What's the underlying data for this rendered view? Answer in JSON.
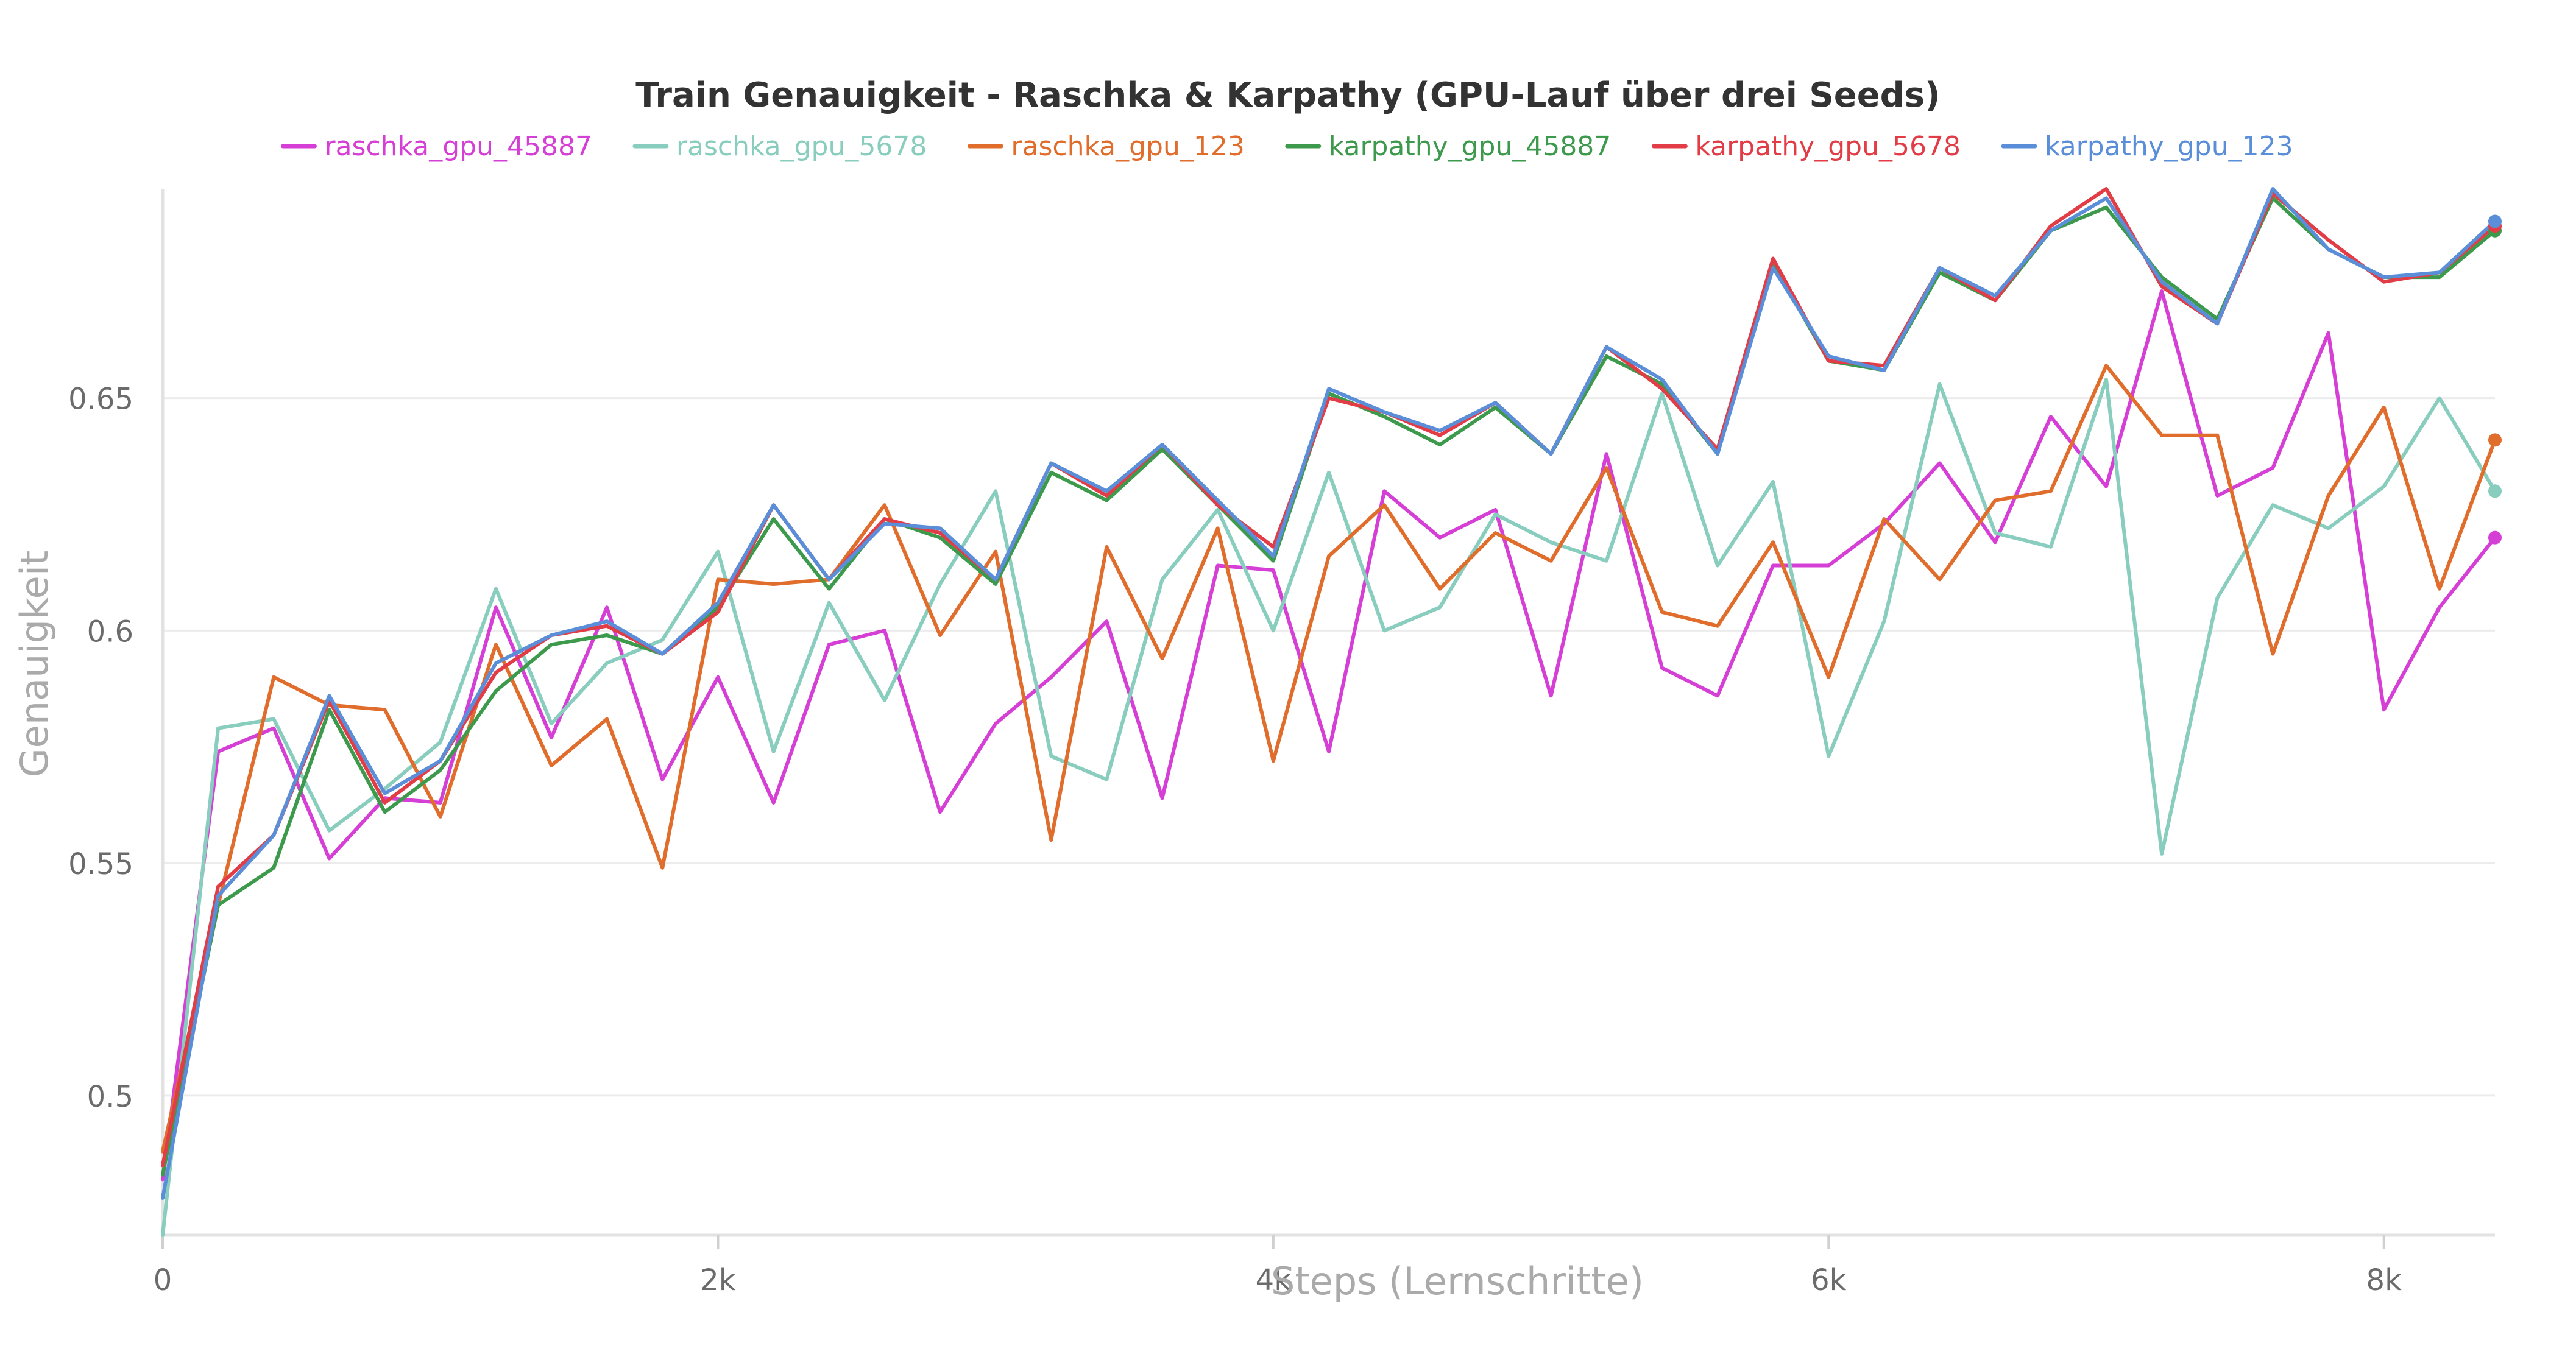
{
  "chart_data": {
    "type": "line",
    "title": "Train Genauigkeit - Raschka & Karpathy (GPU-Lauf über drei Seeds)",
    "xlabel": "Steps (Lernschritte)",
    "ylabel": "Genauigkeit",
    "xlim": [
      0,
      8400
    ],
    "ylim": [
      0.47,
      0.695
    ],
    "xticks": [
      0,
      2000,
      4000,
      6000,
      8000
    ],
    "xtick_labels": [
      "0",
      "2k",
      "4k",
      "6k",
      "8k"
    ],
    "yticks": [
      0.5,
      0.55,
      0.6,
      0.65
    ],
    "ytick_labels": [
      "0.5",
      "0.55",
      "0.6",
      "0.65"
    ],
    "grid": "horizontal",
    "legend_position": "top",
    "x": [
      0,
      200,
      400,
      600,
      800,
      1000,
      1200,
      1400,
      1600,
      1800,
      2000,
      2200,
      2400,
      2600,
      2800,
      3000,
      3200,
      3400,
      3600,
      3800,
      4000,
      4200,
      4400,
      4600,
      4800,
      5000,
      5200,
      5400,
      5600,
      5800,
      6000,
      6200,
      6400,
      6600,
      6800,
      7000,
      7200,
      7400,
      7600,
      7800,
      8000,
      8200,
      8400
    ],
    "series": [
      {
        "name": "raschka_gpu_45887",
        "color": "#d63fd6",
        "values": [
          0.482,
          0.574,
          0.579,
          0.551,
          0.564,
          0.563,
          0.605,
          0.577,
          0.605,
          0.568,
          0.59,
          0.563,
          0.597,
          0.6,
          0.561,
          0.58,
          0.59,
          0.602,
          0.564,
          0.614,
          0.613,
          0.574,
          0.63,
          0.62,
          0.626,
          0.586,
          0.638,
          0.592,
          0.586,
          0.614,
          0.614,
          0.623,
          0.636,
          0.619,
          0.646,
          0.631,
          0.673,
          0.629,
          0.635,
          0.664,
          0.583,
          0.605,
          0.62
        ]
      },
      {
        "name": "raschka_gpu_5678",
        "color": "#88cdbd",
        "values": [
          0.47,
          0.579,
          0.581,
          0.557,
          0.566,
          0.576,
          0.609,
          0.58,
          0.593,
          0.598,
          0.617,
          0.574,
          0.606,
          0.585,
          0.61,
          0.63,
          0.573,
          0.568,
          0.611,
          0.626,
          0.6,
          0.634,
          0.6,
          0.605,
          0.625,
          0.619,
          0.615,
          0.651,
          0.614,
          0.632,
          0.573,
          0.602,
          0.653,
          0.621,
          0.618,
          0.654,
          0.552,
          0.607,
          0.627,
          0.622,
          0.631,
          0.65,
          0.63
        ]
      },
      {
        "name": "raschka_gpu_123",
        "color": "#e06d2b",
        "values": [
          0.488,
          0.541,
          0.59,
          0.584,
          0.583,
          0.56,
          0.597,
          0.571,
          0.581,
          0.549,
          0.611,
          0.61,
          0.611,
          0.627,
          0.599,
          0.617,
          0.555,
          0.618,
          0.594,
          0.622,
          0.572,
          0.616,
          0.627,
          0.609,
          0.621,
          0.615,
          0.635,
          0.604,
          0.601,
          0.619,
          0.59,
          0.624,
          0.611,
          0.628,
          0.63,
          0.657,
          0.642,
          0.642,
          0.595,
          0.629,
          0.648,
          0.609,
          0.641
        ]
      },
      {
        "name": "karpathy_gpu_45887",
        "color": "#3d9a4c",
        "values": [
          0.483,
          0.541,
          0.549,
          0.583,
          0.561,
          0.57,
          0.587,
          0.597,
          0.599,
          0.595,
          0.605,
          0.624,
          0.609,
          0.624,
          0.62,
          0.61,
          0.634,
          0.628,
          0.639,
          0.627,
          0.615,
          0.651,
          0.646,
          0.64,
          0.648,
          0.638,
          0.659,
          0.653,
          0.638,
          0.679,
          0.658,
          0.656,
          0.677,
          0.671,
          0.686,
          0.691,
          0.676,
          0.667,
          0.693,
          0.682,
          0.676,
          0.676,
          0.686
        ]
      },
      {
        "name": "karpathy_gpu_5678",
        "color": "#e23d47",
        "values": [
          0.485,
          0.545,
          0.556,
          0.585,
          0.563,
          0.572,
          0.591,
          0.599,
          0.601,
          0.595,
          0.604,
          0.627,
          0.611,
          0.624,
          0.621,
          0.611,
          0.636,
          0.629,
          0.64,
          0.627,
          0.618,
          0.65,
          0.647,
          0.642,
          0.649,
          0.638,
          0.661,
          0.652,
          0.639,
          0.68,
          0.658,
          0.657,
          0.678,
          0.671,
          0.687,
          0.695,
          0.674,
          0.666,
          0.694,
          0.684,
          0.675,
          0.677,
          0.687
        ]
      },
      {
        "name": "karpathy_gpu_123",
        "color": "#5b8ed8",
        "values": [
          0.478,
          0.543,
          0.556,
          0.586,
          0.565,
          0.572,
          0.593,
          0.599,
          0.602,
          0.595,
          0.606,
          0.627,
          0.611,
          0.623,
          0.622,
          0.611,
          0.636,
          0.63,
          0.64,
          0.628,
          0.616,
          0.652,
          0.647,
          0.643,
          0.649,
          0.638,
          0.661,
          0.654,
          0.638,
          0.678,
          0.659,
          0.656,
          0.678,
          0.672,
          0.686,
          0.693,
          0.675,
          0.666,
          0.695,
          0.682,
          0.676,
          0.677,
          0.688
        ]
      }
    ]
  }
}
